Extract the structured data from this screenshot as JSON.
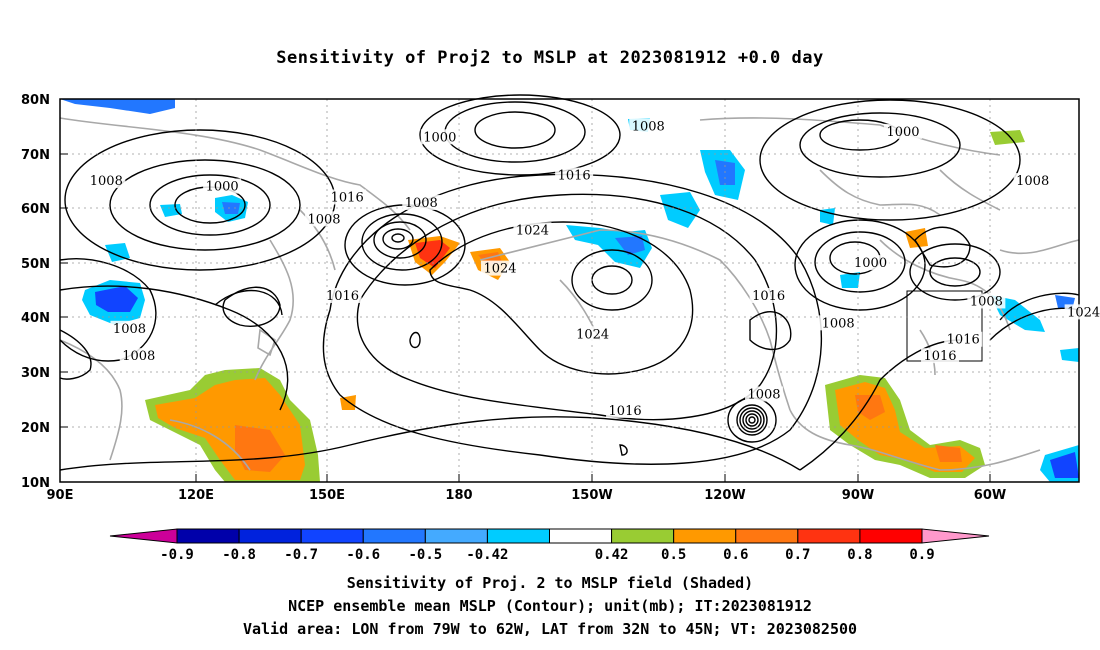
{
  "title": "Sensitivity of Proj2 to MSLP at 2023081912 +0.0 day",
  "lat_labels": [
    "80N",
    "70N",
    "60N",
    "50N",
    "40N",
    "30N",
    "20N",
    "10N"
  ],
  "lon_labels": [
    "90E",
    "120E",
    "150E",
    "180",
    "150W",
    "120W",
    "90W",
    "60W"
  ],
  "contour_labels": [
    {
      "text": "1000",
      "lon": 172,
      "lat": 73
    },
    {
      "text": "1008",
      "lon": 217,
      "lat": 75
    },
    {
      "text": "1000",
      "lon": 272,
      "lat": 74
    },
    {
      "text": "1008",
      "lon": 100,
      "lat": 65
    },
    {
      "text": "1000",
      "lon": 125,
      "lat": 64
    },
    {
      "text": "1016",
      "lon": 152,
      "lat": 62
    },
    {
      "text": "1008",
      "lon": 168,
      "lat": 61
    },
    {
      "text": "1016",
      "lon": 201,
      "lat": 66
    },
    {
      "text": "1008",
      "lon": 147,
      "lat": 58
    },
    {
      "text": "1024",
      "lon": 192,
      "lat": 56
    },
    {
      "text": "1008",
      "lon": 300,
      "lat": 65
    },
    {
      "text": "1024",
      "lon": 185,
      "lat": 49
    },
    {
      "text": "1000",
      "lon": 265,
      "lat": 50
    },
    {
      "text": "1016",
      "lon": 151,
      "lat": 44
    },
    {
      "text": "1016",
      "lon": 243,
      "lat": 44
    },
    {
      "text": "1008",
      "lon": 290,
      "lat": 43
    },
    {
      "text": "1008",
      "lon": 105,
      "lat": 38
    },
    {
      "text": "1008",
      "lon": 258,
      "lat": 39
    },
    {
      "text": "1024",
      "lon": 205,
      "lat": 37
    },
    {
      "text": "1024",
      "lon": 311,
      "lat": 41
    },
    {
      "text": "1016",
      "lon": 285,
      "lat": 36
    },
    {
      "text": "1008",
      "lon": 107,
      "lat": 33
    },
    {
      "text": "1016",
      "lon": 280,
      "lat": 33
    },
    {
      "text": "1008",
      "lon": 242,
      "lat": 26
    },
    {
      "text": "1016",
      "lon": 212,
      "lat": 23
    }
  ],
  "colorbar": {
    "labels": [
      "-0.9",
      "-0.8",
      "-0.7",
      "-0.6",
      "-0.5",
      "-0.42",
      "0.42",
      "0.5",
      "0.6",
      "0.7",
      "0.8",
      "0.9"
    ],
    "colors": [
      "#0000aa",
      "#0022dd",
      "#1144ff",
      "#2277ff",
      "#44aaff",
      "#00ccff",
      "#ffffff",
      "#99cc33",
      "#ff9900",
      "#ff7711",
      "#ff3311",
      "#ff0000"
    ],
    "low_end_color": "#cc0099",
    "high_end_color": "#ff99cc"
  },
  "captions": [
    "Sensitivity of Proj. 2 to MSLP field (Shaded)",
    "NCEP ensemble mean MSLP (Contour); unit(mb); IT:2023081912",
    "Valid area: LON from 79W to 62W, LAT from 32N to 45N; VT: 2023082500"
  ],
  "valid_area_box": {
    "lon_min": -79,
    "lon_max": -62,
    "lat_min": 32,
    "lat_max": 45
  }
}
